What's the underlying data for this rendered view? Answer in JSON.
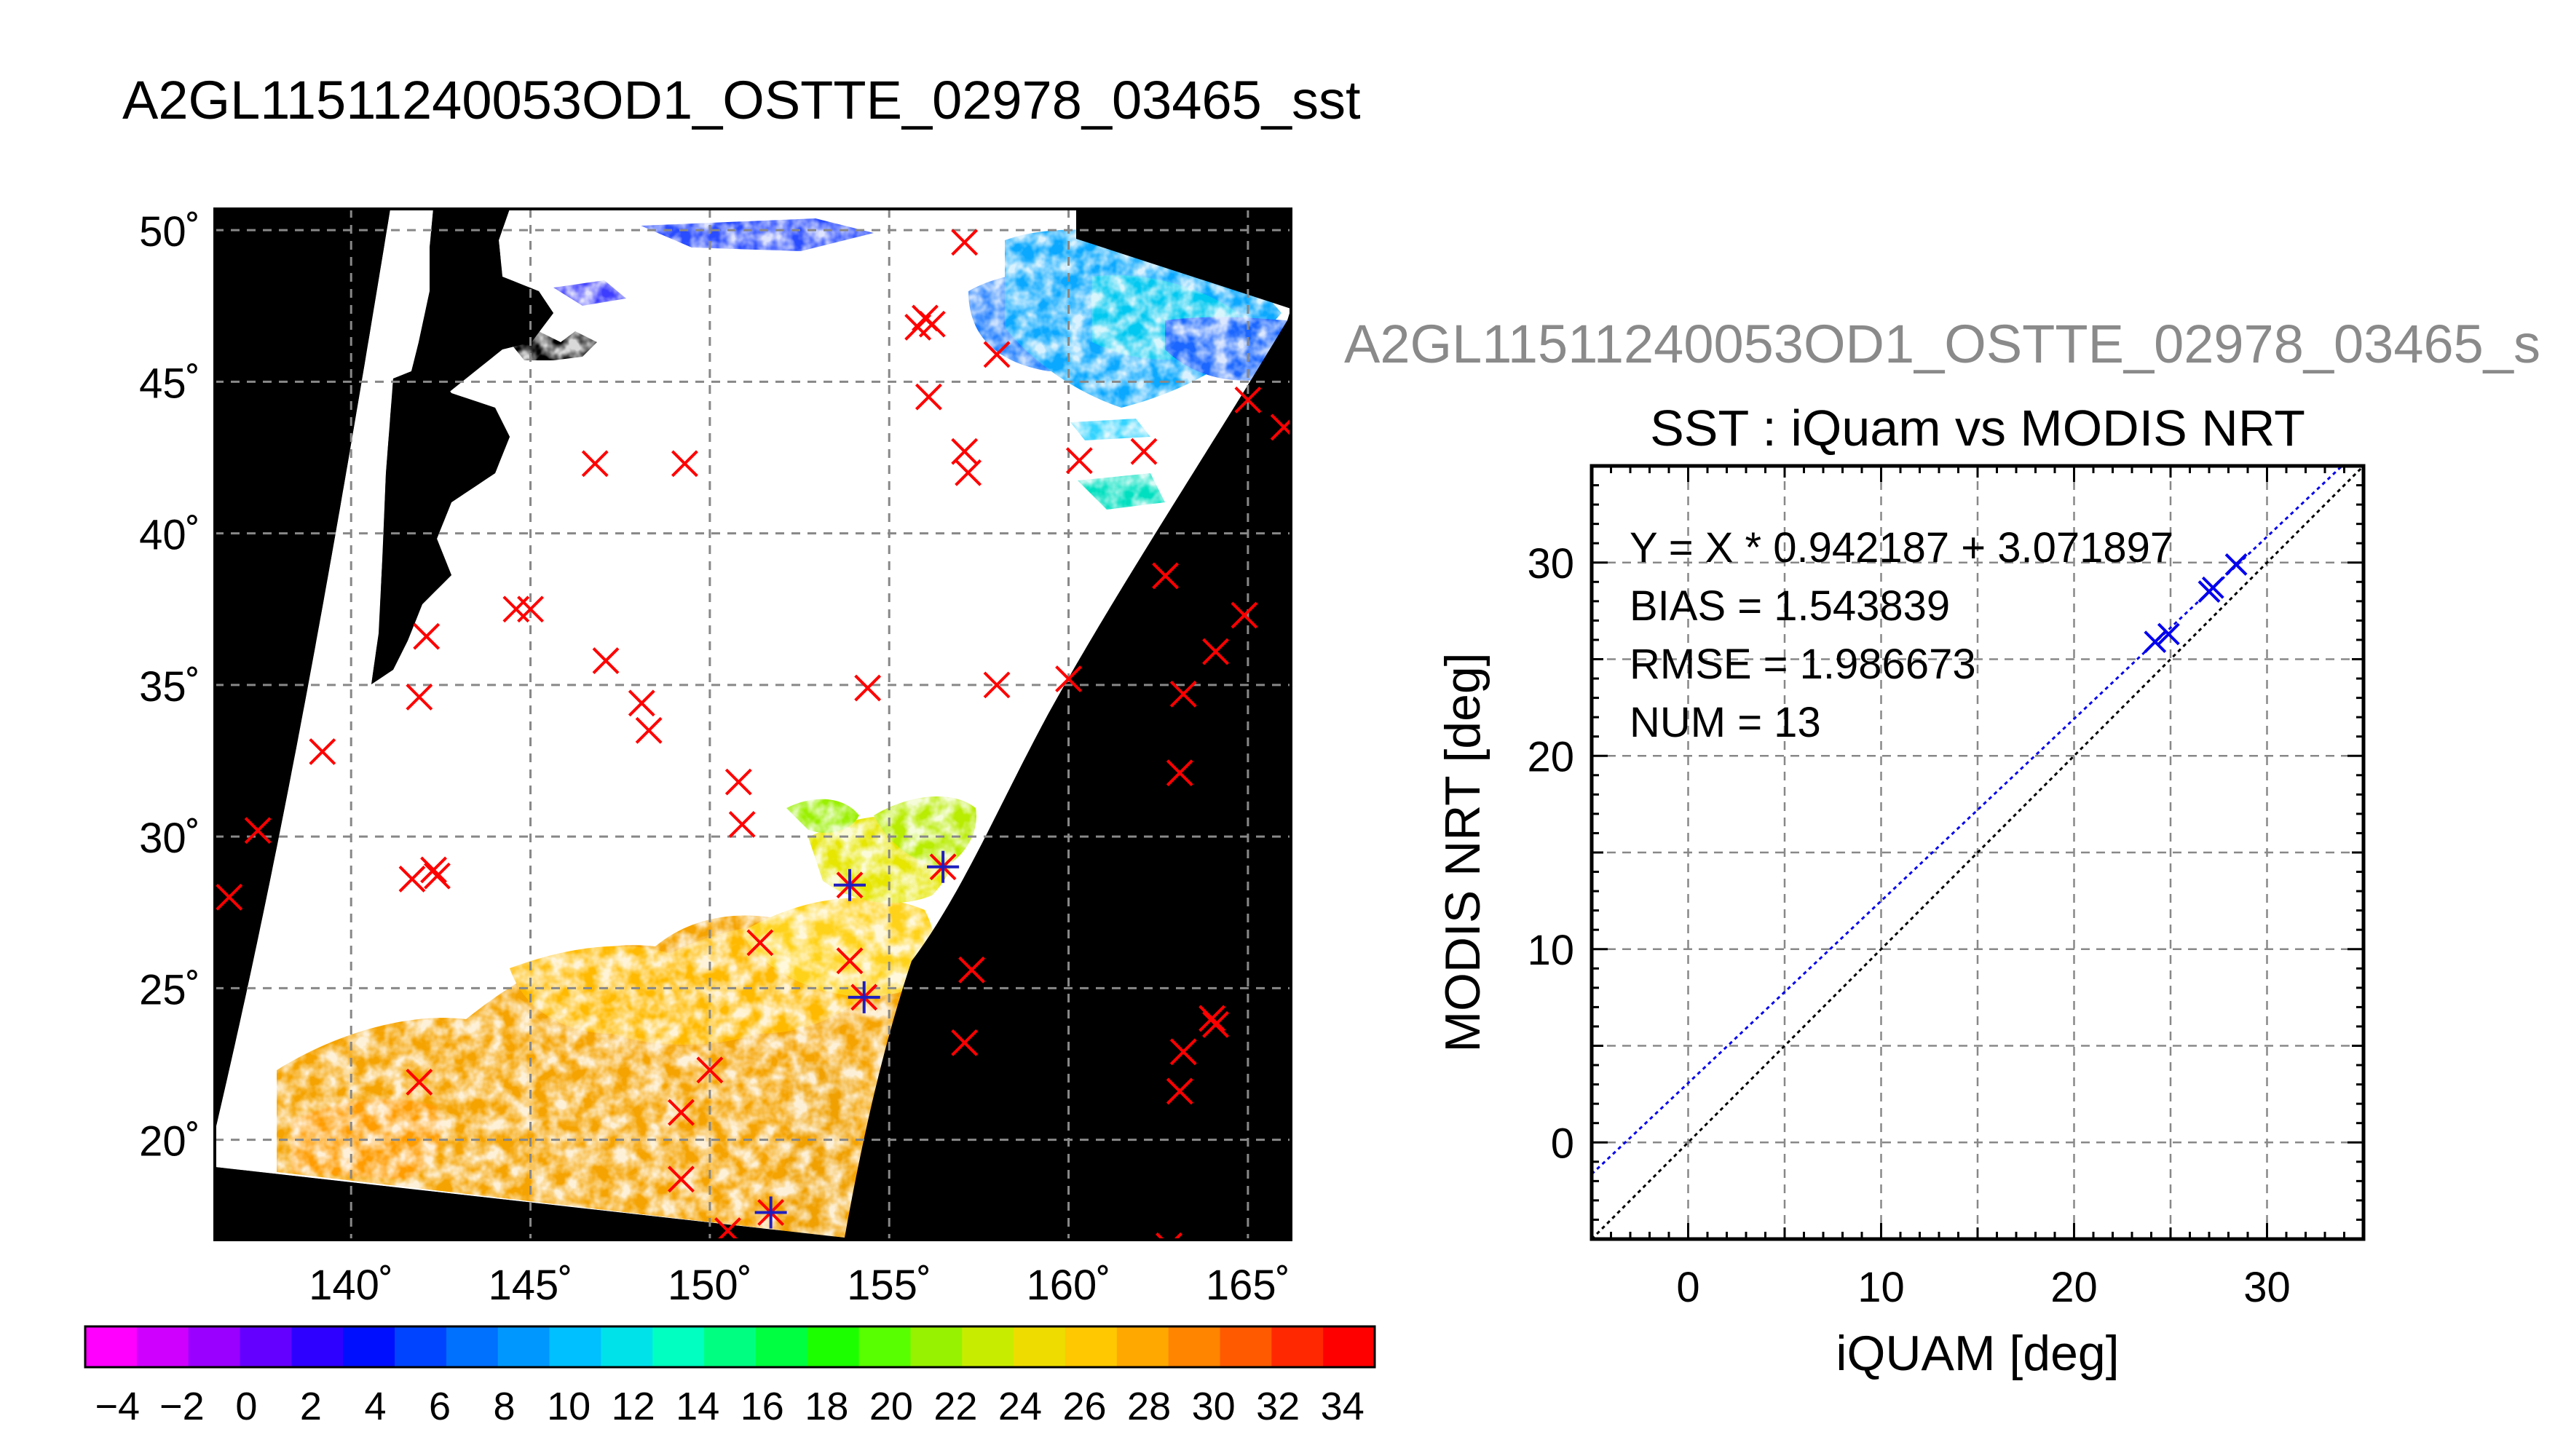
{
  "page": {
    "main_title": "A2GL11511240053OD1_OSTTE_02978_03465_sst",
    "scatter_caption": "A2GL11511240053OD1_OSTTE_02978_03465_s"
  },
  "map": {
    "lat_labels": [
      "50˚",
      "45˚",
      "40˚",
      "35˚",
      "30˚",
      "25˚",
      "20˚"
    ],
    "lat_values": [
      50,
      45,
      40,
      35,
      30,
      25,
      20
    ],
    "lon_labels": [
      "140˚",
      "145˚",
      "150˚",
      "155˚",
      "160˚",
      "165˚"
    ],
    "lon_values": [
      140,
      145,
      150,
      155,
      160,
      165
    ],
    "lon_range": [
      136.2,
      166.2
    ],
    "lat_range": [
      16.7,
      50.7
    ],
    "colors": {
      "background": "#000000",
      "cloud_mask": "#ffffff",
      "grid": "#888888",
      "iquam_marker": "#ff0000",
      "matchup_marker": "#1f1fbf"
    },
    "iquam_points": [
      [
        157.1,
        49.6
      ],
      [
        156.0,
        47.1
      ],
      [
        155.8,
        46.8
      ],
      [
        156.2,
        46.9
      ],
      [
        158.0,
        45.9
      ],
      [
        156.1,
        44.5
      ],
      [
        157.1,
        42.7
      ],
      [
        157.2,
        42.0
      ],
      [
        146.8,
        42.3
      ],
      [
        149.3,
        42.3
      ],
      [
        160.3,
        42.4
      ],
      [
        162.1,
        42.7
      ],
      [
        165.0,
        44.4
      ],
      [
        166.0,
        43.5
      ],
      [
        162.7,
        38.6
      ],
      [
        164.9,
        37.3
      ],
      [
        164.1,
        36.1
      ],
      [
        160.0,
        35.2
      ],
      [
        163.2,
        34.7
      ],
      [
        163.1,
        32.1
      ],
      [
        144.6,
        37.5
      ],
      [
        145.0,
        37.5
      ],
      [
        142.1,
        36.6
      ],
      [
        141.9,
        34.6
      ],
      [
        147.1,
        35.8
      ],
      [
        154.4,
        34.9
      ],
      [
        158.0,
        35.0
      ],
      [
        148.1,
        34.4
      ],
      [
        139.2,
        32.8
      ],
      [
        137.4,
        30.2
      ],
      [
        136.6,
        28.0
      ],
      [
        141.7,
        28.6
      ],
      [
        142.3,
        28.9
      ],
      [
        142.4,
        28.7
      ],
      [
        148.3,
        33.5
      ],
      [
        150.8,
        31.8
      ],
      [
        150.9,
        30.4
      ],
      [
        153.9,
        28.4
      ],
      [
        156.5,
        29.0
      ],
      [
        153.9,
        25.9
      ],
      [
        151.4,
        26.5
      ],
      [
        157.3,
        25.6
      ],
      [
        154.3,
        24.7
      ],
      [
        157.1,
        23.2
      ],
      [
        164.0,
        24.0
      ],
      [
        164.1,
        23.8
      ],
      [
        163.2,
        22.9
      ],
      [
        163.1,
        21.6
      ],
      [
        141.9,
        21.9
      ],
      [
        149.2,
        20.9
      ],
      [
        150.0,
        22.3
      ],
      [
        149.2,
        18.7
      ],
      [
        150.5,
        17.0
      ],
      [
        151.7,
        17.6
      ],
      [
        162.8,
        16.5
      ]
    ],
    "matchup_points": [
      [
        153.9,
        28.4
      ],
      [
        156.5,
        29.0
      ],
      [
        154.3,
        24.7
      ],
      [
        151.7,
        17.6
      ]
    ]
  },
  "colorbar": {
    "labels": [
      "−4",
      "−2",
      "0",
      "2",
      "4",
      "6",
      "8",
      "10",
      "12",
      "14",
      "16",
      "18",
      "20",
      "22",
      "24",
      "26",
      "28",
      "30",
      "32",
      "34"
    ],
    "label_values": [
      -4,
      -2,
      0,
      2,
      4,
      6,
      8,
      10,
      12,
      14,
      16,
      18,
      20,
      22,
      24,
      26,
      28,
      30,
      32,
      34
    ],
    "range": [
      -5,
      35
    ],
    "colors": [
      "#ff00ff",
      "#d000ff",
      "#9a00ff",
      "#6400ff",
      "#2d00ff",
      "#0010ff",
      "#0044ff",
      "#0070ff",
      "#0098ff",
      "#00c0ff",
      "#00e2ea",
      "#00ffc0",
      "#00ff80",
      "#00ff40",
      "#1cff00",
      "#58ff00",
      "#96f200",
      "#c8ec00",
      "#eedc00",
      "#ffc800",
      "#ffa800",
      "#ff8400",
      "#ff5a00",
      "#ff2800",
      "#ff0000"
    ]
  },
  "chart_data": {
    "type": "scatter",
    "title": "SST : iQuam vs MODIS NRT",
    "xlabel": "iQUAM [deg]",
    "ylabel": "MODIS NRT [deg]",
    "xlim": [
      -5,
      35
    ],
    "ylim": [
      -5,
      35
    ],
    "xticks": [
      0,
      10,
      20,
      30
    ],
    "yticks": [
      0,
      10,
      20,
      30
    ],
    "xtick_labels": [
      "0",
      "10",
      "20",
      "30"
    ],
    "ytick_labels": [
      "0",
      "10",
      "20",
      "30"
    ],
    "grid": true,
    "stats": [
      "Y = X * 0.942187 + 3.071897",
      "BIAS = 1.543839",
      "RMSE = 1.986673",
      "NUM = 13"
    ],
    "fit": {
      "slope": 0.942187,
      "intercept": 3.071897
    },
    "points": [
      [
        24.2,
        25.9
      ],
      [
        24.9,
        26.3
      ],
      [
        27.2,
        28.7
      ],
      [
        28.4,
        29.9
      ],
      [
        27.0,
        28.5
      ]
    ],
    "colors": {
      "points": "#0000ee",
      "fit_line": "#0000ee",
      "identity_line": "#000000",
      "grid": "#888888"
    }
  }
}
